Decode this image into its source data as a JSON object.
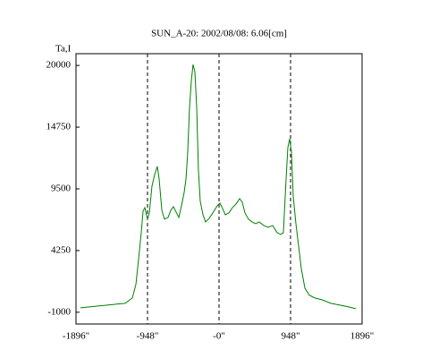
{
  "chart_data": {
    "type": "line",
    "title": "SUN_A-20: 2002/08/08: 6.06[cm]",
    "y_label": "Ta,I",
    "x": [
      -1837,
      -1718,
      -1481,
      -1244,
      -1149,
      -1102,
      -1067,
      -1031,
      -1007,
      -984,
      -948,
      -924,
      -889,
      -853,
      -818,
      -794,
      -758,
      -723,
      -675,
      -640,
      -604,
      -569,
      -533,
      -498,
      -462,
      -438,
      -415,
      -391,
      -367,
      -344,
      -320,
      -296,
      -273,
      -249,
      -213,
      -178,
      -130,
      -83,
      -24,
      12,
      47,
      83,
      130,
      178,
      225,
      273,
      308,
      344,
      391,
      438,
      486,
      533,
      593,
      652,
      711,
      770,
      818,
      853,
      889,
      912,
      936,
      960,
      984,
      1019,
      1055,
      1090,
      1138,
      1197,
      1268,
      1363,
      1481,
      1600,
      1718,
      1813
    ],
    "series": [
      {
        "name": "Ta,I",
        "color": "#008000",
        "values": [
          -620,
          -543,
          -391,
          -239,
          218,
          1359,
          3490,
          5773,
          7599,
          7904,
          6914,
          7447,
          9730,
          10719,
          11404,
          10339,
          7675,
          6914,
          7067,
          7675,
          7980,
          7523,
          7067,
          8056,
          9197,
          10339,
          12622,
          16427,
          18710,
          20080,
          19471,
          16427,
          11100,
          8436,
          7295,
          6686,
          6990,
          7447,
          8056,
          8284,
          7828,
          7295,
          7447,
          7904,
          8208,
          8665,
          8360,
          7447,
          6914,
          6686,
          6534,
          6686,
          6382,
          6230,
          6382,
          5773,
          5621,
          5773,
          10339,
          13002,
          13763,
          12622,
          8817,
          6534,
          4631,
          2729,
          1055,
          446,
          218,
          65,
          -239,
          -391,
          -543,
          -696
        ]
      }
    ],
    "xlim": [
      -1896,
      1896
    ],
    "ylim": [
      -2000,
      21000
    ],
    "xticks": [
      {
        "value": -1896,
        "label": "-1896\""
      },
      {
        "value": -948,
        "label": "-948\""
      },
      {
        "value": 0,
        "label": "-0\""
      },
      {
        "value": 948,
        "label": "948\""
      },
      {
        "value": 1896,
        "label": "1896\""
      }
    ],
    "yticks": [
      -1000,
      4250,
      9500,
      14750,
      20000
    ],
    "grid": true,
    "grid_style": "dashed"
  }
}
